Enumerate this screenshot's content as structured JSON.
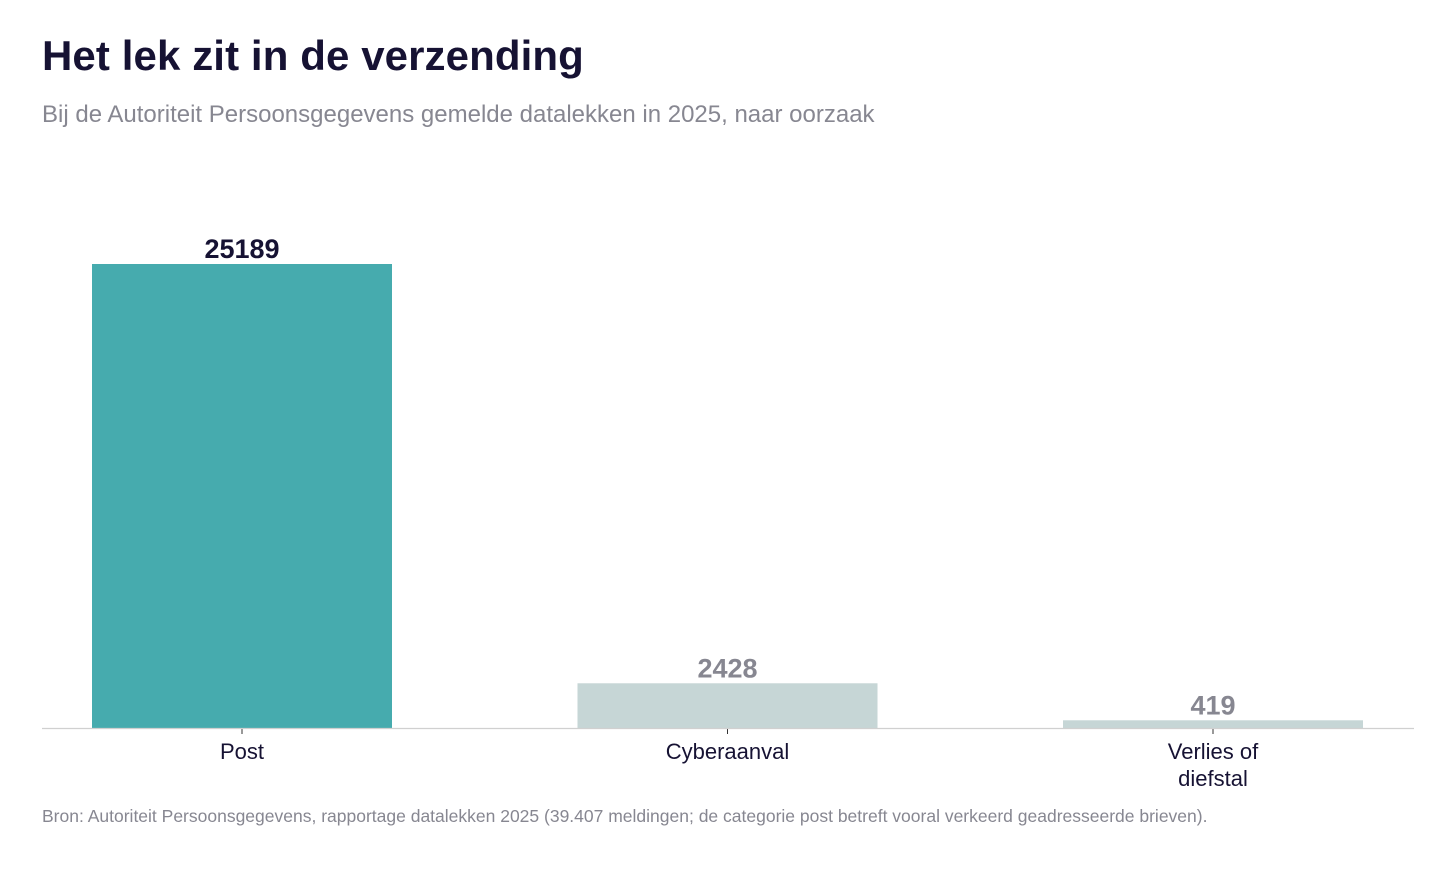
{
  "header": {
    "title": "Het lek zit in de verzending",
    "subtitle": "Bij de Autoriteit Persoonsgegevens gemelde datalekken in 2025, naar oorzaak"
  },
  "footer": {
    "source": "Bron: Autoriteit Persoonsgegevens, rapportage datalekken 2025 (39.407 meldingen; de categorie post betreft vooral verkeerd geadresseerde brieven)."
  },
  "colors": {
    "highlight": "#46abae",
    "muted": "#c6d6d6",
    "highlight_label": "#161233",
    "muted_label": "#878791",
    "axis": "#d0d0d0"
  },
  "chart_data": {
    "type": "bar",
    "title": "Het lek zit in de verzending",
    "subtitle": "Bij de Autoriteit Persoonsgegevens gemelde datalekken in 2025, naar oorzaak",
    "categories": [
      [
        "Post"
      ],
      [
        "Cyberaanval"
      ],
      [
        "Verlies of",
        "diefstal"
      ]
    ],
    "values": [
      25189,
      2428,
      419
    ],
    "highlight": [
      true,
      false,
      false
    ],
    "ylim": [
      0,
      25189
    ],
    "grid": false,
    "legend": "none"
  }
}
